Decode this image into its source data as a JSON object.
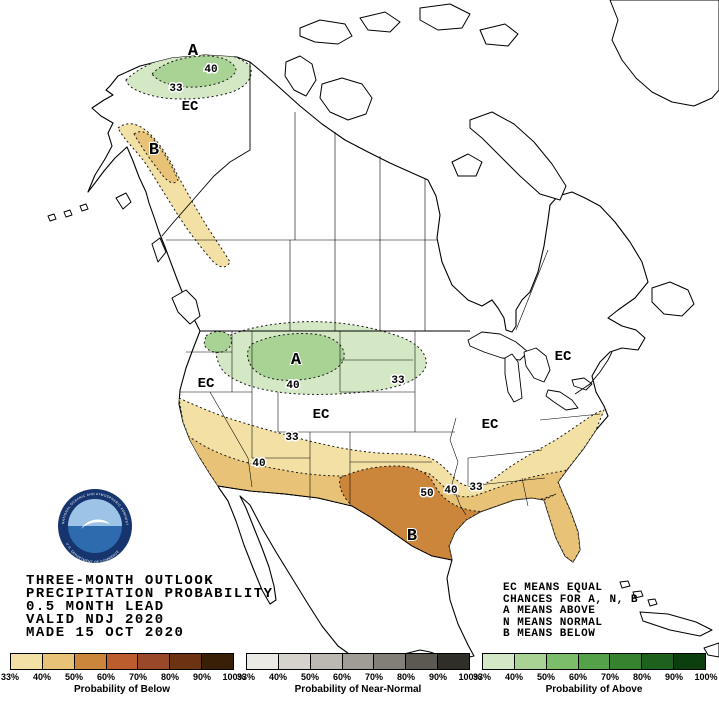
{
  "map": {
    "labels": [
      "A",
      "40",
      "33",
      "EC",
      "B",
      "A",
      "40",
      "33",
      "EC",
      "EC",
      "33",
      "40",
      "EC",
      "EC",
      "50",
      "40",
      "33",
      "B"
    ]
  },
  "colors": {
    "above_33": "#D5E8C5",
    "above_40": "#A9D395",
    "below_33": "#F3E0A4",
    "below_40": "#E8C377",
    "below_50": "#CC863C",
    "land": "#FFFFFF",
    "outline": "#000000",
    "logo_navy": "#16356E",
    "logo_sea": "#2E6BAE",
    "logo_sky": "#9DC3E6"
  },
  "logo": {
    "arc_top": "NATIONAL OCEANIC AND ATMOSPHERIC ADMINISTRATION",
    "arc_bottom": "U.S. DEPARTMENT OF COMMERCE"
  },
  "title_block": {
    "lines": [
      "THREE-MONTH OUTLOOK",
      "PRECIPITATION PROBABILITY",
      "0.5 MONTH LEAD",
      "VALID NDJ 2020",
      "MADE 15 OCT 2020"
    ]
  },
  "legend_notes": {
    "lines": [
      "EC MEANS EQUAL",
      "CHANCES FOR A, N, B",
      "A MEANS ABOVE",
      "N MEANS NORMAL",
      "B MEANS BELOW"
    ]
  },
  "colorbars": [
    {
      "caption": "Probability of Below",
      "ticks": [
        "33%",
        "40%",
        "50%",
        "60%",
        "70%",
        "80%",
        "90%",
        "100%"
      ],
      "colors": [
        "#F3E0A4",
        "#E8C377",
        "#CC863C",
        "#BB5D2D",
        "#99482A",
        "#6B3312",
        "#3A1F07"
      ]
    },
    {
      "caption": "Probability of Near-Normal",
      "ticks": [
        "33%",
        "40%",
        "50%",
        "60%",
        "70%",
        "80%",
        "90%",
        "100%"
      ],
      "colors": [
        "#ECEAE4",
        "#D6D3CD",
        "#BCB9B3",
        "#A09D97",
        "#827F79",
        "#5C5953",
        "#302E29"
      ]
    },
    {
      "caption": "Probability of Above",
      "ticks": [
        "33%",
        "40%",
        "50%",
        "60%",
        "70%",
        "80%",
        "90%",
        "100%"
      ],
      "colors": [
        "#D5E8C5",
        "#A9D395",
        "#7CBD69",
        "#54A14A",
        "#35822F",
        "#1E611C",
        "#0C3F0E"
      ]
    }
  ]
}
